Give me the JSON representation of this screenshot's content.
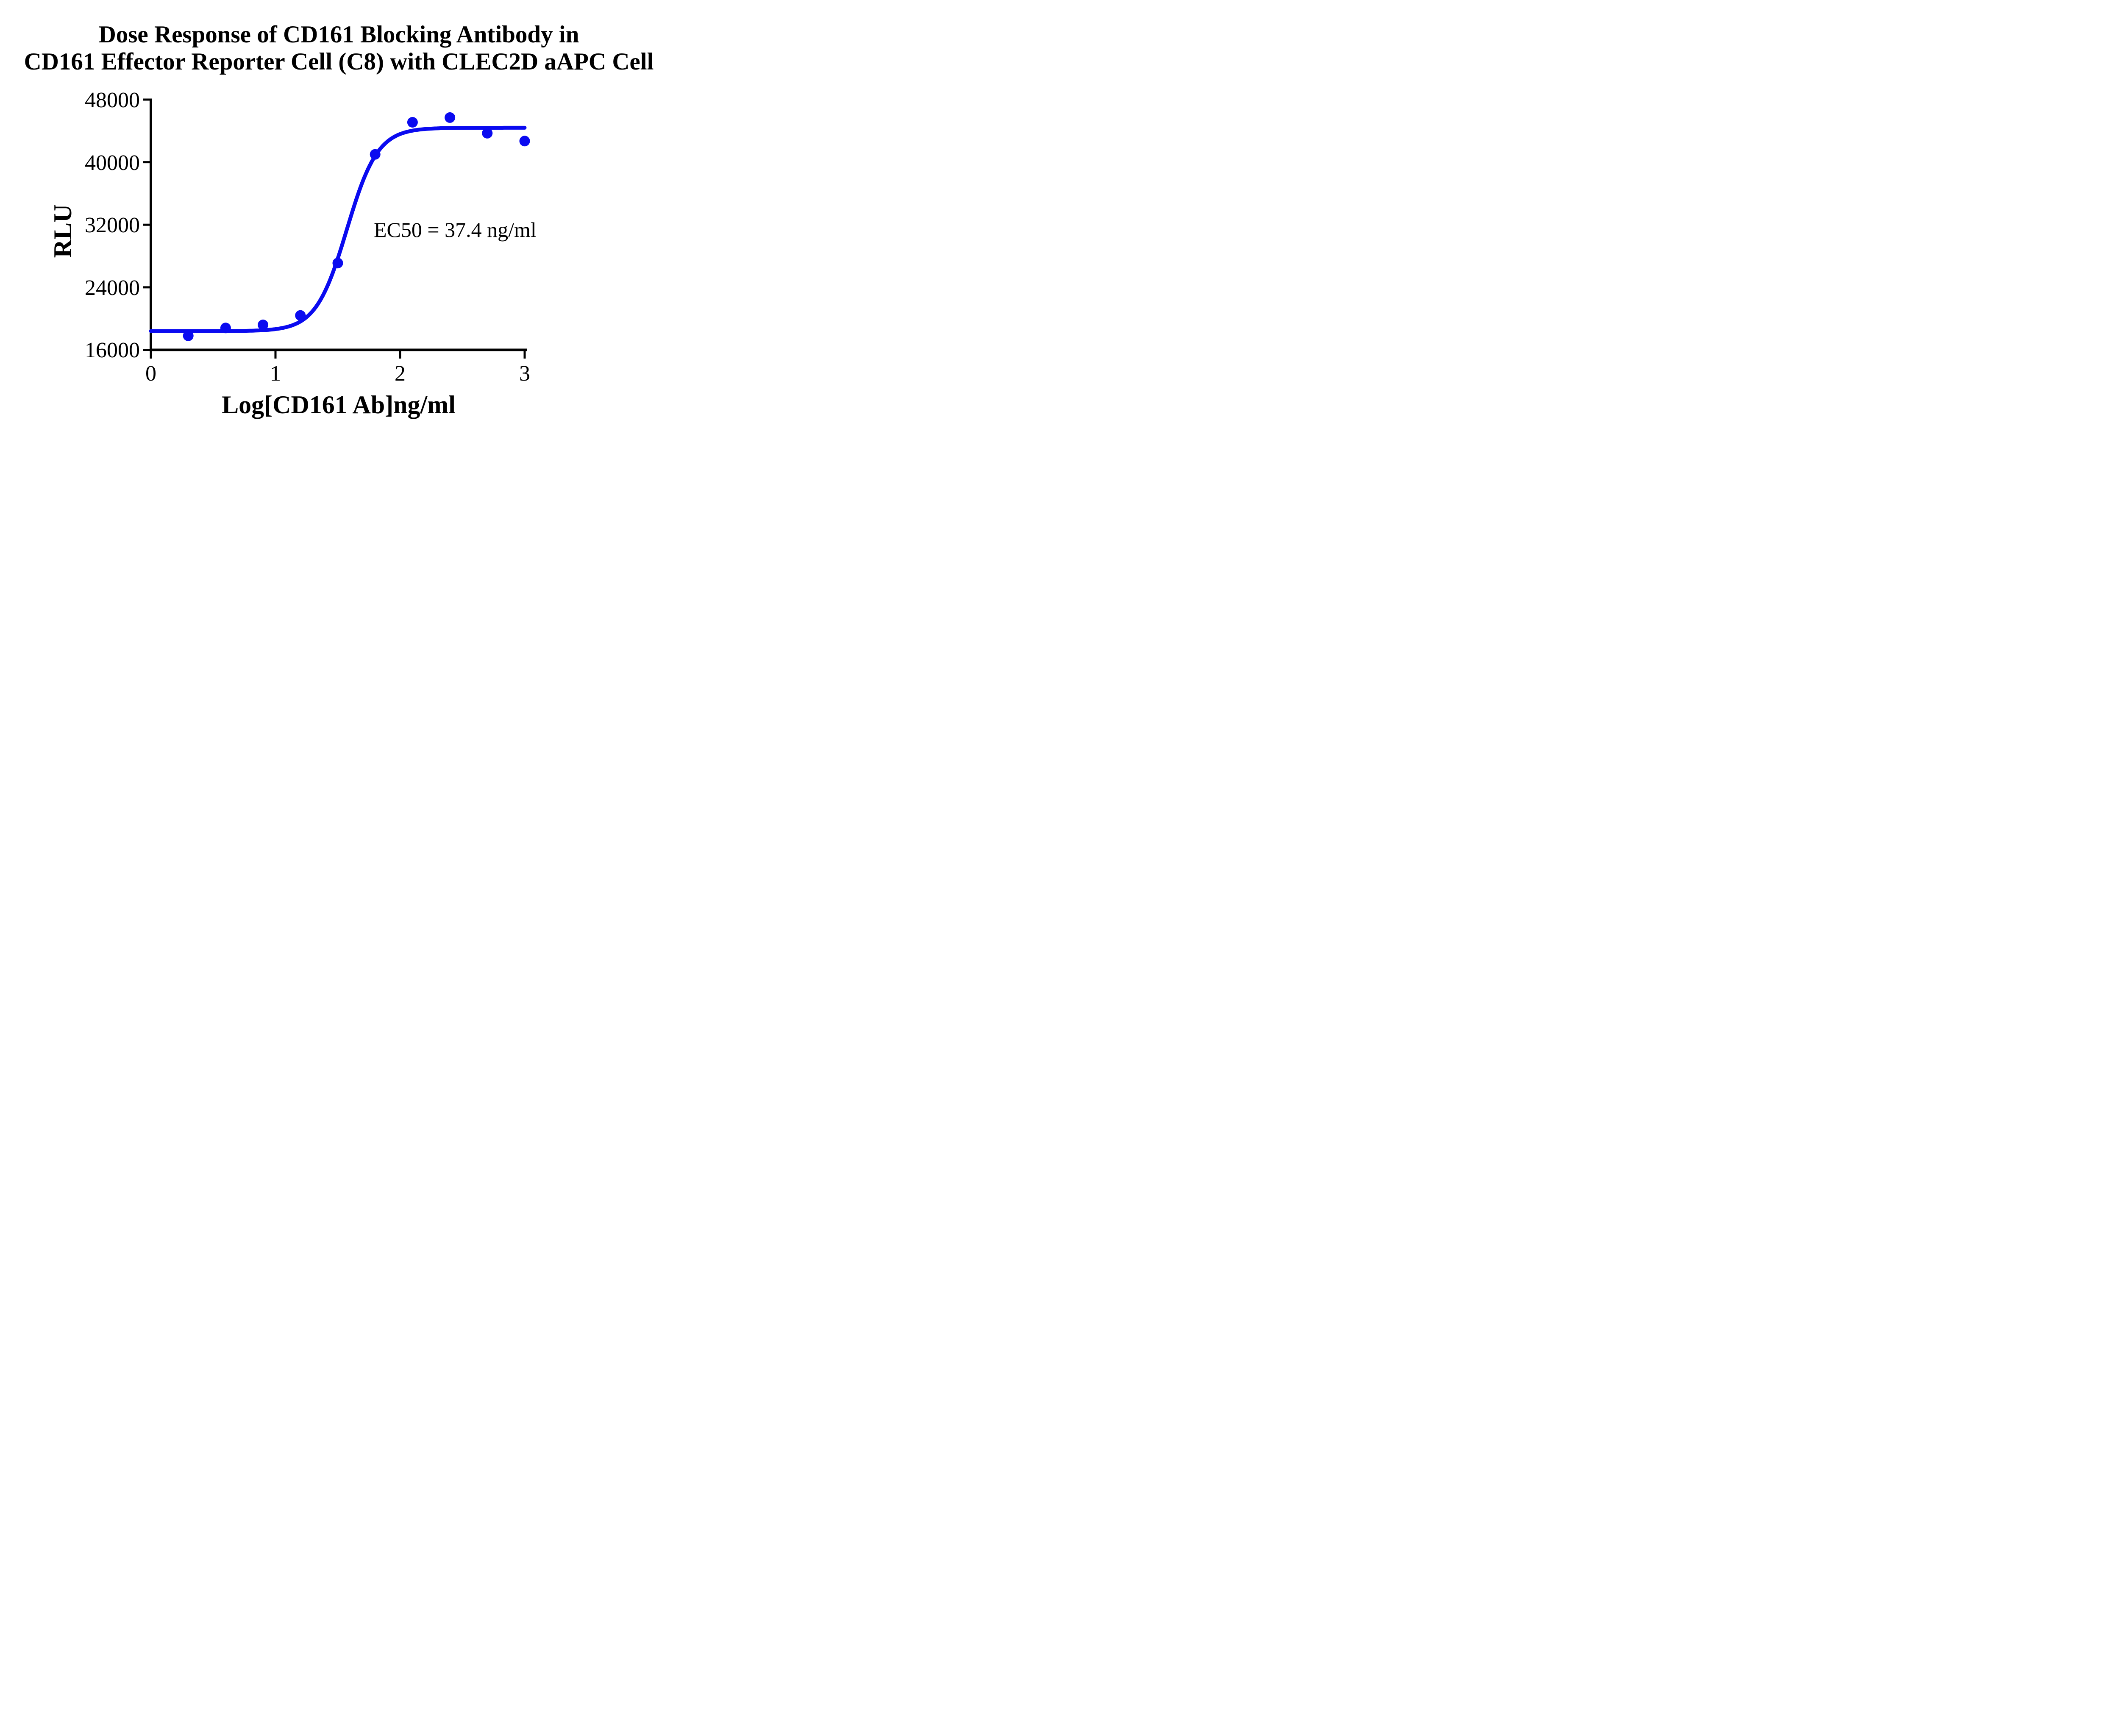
{
  "figure": {
    "background": "#ffffff"
  },
  "chart_data": {
    "type": "scatter",
    "title_lines": [
      "Dose Response of CD161 Blocking Antibody in",
      "CD161 Effector Reporter Cell (C8) with CLEC2D aAPC Cell"
    ],
    "xlabel": "Log[CD161 Ab]ng/ml",
    "ylabel": "RLU",
    "xlim": [
      0,
      3
    ],
    "ylim": [
      16000,
      48000
    ],
    "x_ticks": [
      0,
      1,
      2,
      3
    ],
    "y_ticks": [
      48000,
      40000,
      32000,
      24000,
      16000
    ],
    "grid": false,
    "legend": null,
    "points": [
      {
        "x": 0.3,
        "y": 17800
      },
      {
        "x": 0.6,
        "y": 18800
      },
      {
        "x": 0.9,
        "y": 19200
      },
      {
        "x": 1.2,
        "y": 20400
      },
      {
        "x": 1.5,
        "y": 27100
      },
      {
        "x": 1.8,
        "y": 41000
      },
      {
        "x": 2.1,
        "y": 45100
      },
      {
        "x": 2.4,
        "y": 45700
      },
      {
        "x": 2.7,
        "y": 43700
      },
      {
        "x": 3.0,
        "y": 42700
      }
    ],
    "fit_curve": {
      "model": "four-parameter-logistic",
      "bottom": 18400,
      "top": 44400,
      "log_ec50": 1.573,
      "hill_slope": 3.5
    },
    "annotation": {
      "text": "EC50 = 37.4 ng/ml"
    },
    "ec50_ng_ml": 37.4,
    "colors": {
      "series": "#0a0af0",
      "axis": "#000000",
      "text": "#000000"
    }
  }
}
